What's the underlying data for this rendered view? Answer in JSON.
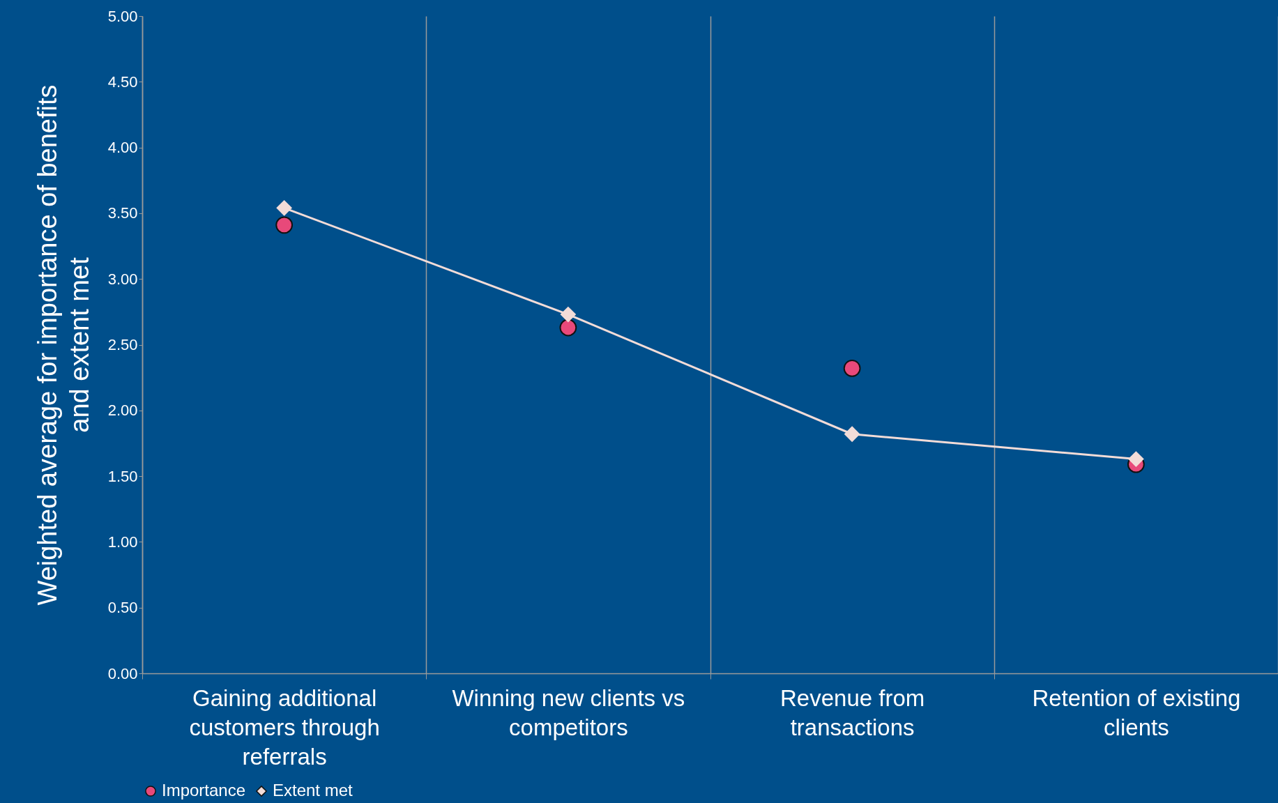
{
  "chart_data": {
    "type": "line",
    "ylabel": "Weighted average for importance of benefits and extent met",
    "categories": [
      "Gaining additional customers through referrals",
      "Winning new clients vs competitors",
      "Revenue from transactions",
      "Retention of existing clients"
    ],
    "series": [
      {
        "name": "Importance",
        "type": "scatter",
        "marker": "circle",
        "color": "#e8497a",
        "values": [
          3.41,
          2.63,
          2.32,
          1.59
        ]
      },
      {
        "name": "Extent met",
        "type": "line",
        "marker": "diamond",
        "color": "#f2dcd8",
        "values": [
          3.54,
          2.73,
          1.82,
          1.63
        ]
      }
    ],
    "ylim": [
      0,
      5
    ],
    "yticks": [
      {
        "value": 0,
        "label": "0.00"
      },
      {
        "value": 0.5,
        "label": "0.50"
      },
      {
        "value": 1,
        "label": "1.00"
      },
      {
        "value": 1.5,
        "label": "1.50"
      },
      {
        "value": 2,
        "label": "2.00"
      },
      {
        "value": 2.5,
        "label": "2.50"
      },
      {
        "value": 3,
        "label": "3.00"
      },
      {
        "value": 3.5,
        "label": "3.50"
      },
      {
        "value": 4,
        "label": "4.00"
      },
      {
        "value": 4.5,
        "label": "4.50"
      },
      {
        "value": 5,
        "label": "5.00"
      }
    ],
    "grid": "x",
    "legend": "bottom"
  }
}
